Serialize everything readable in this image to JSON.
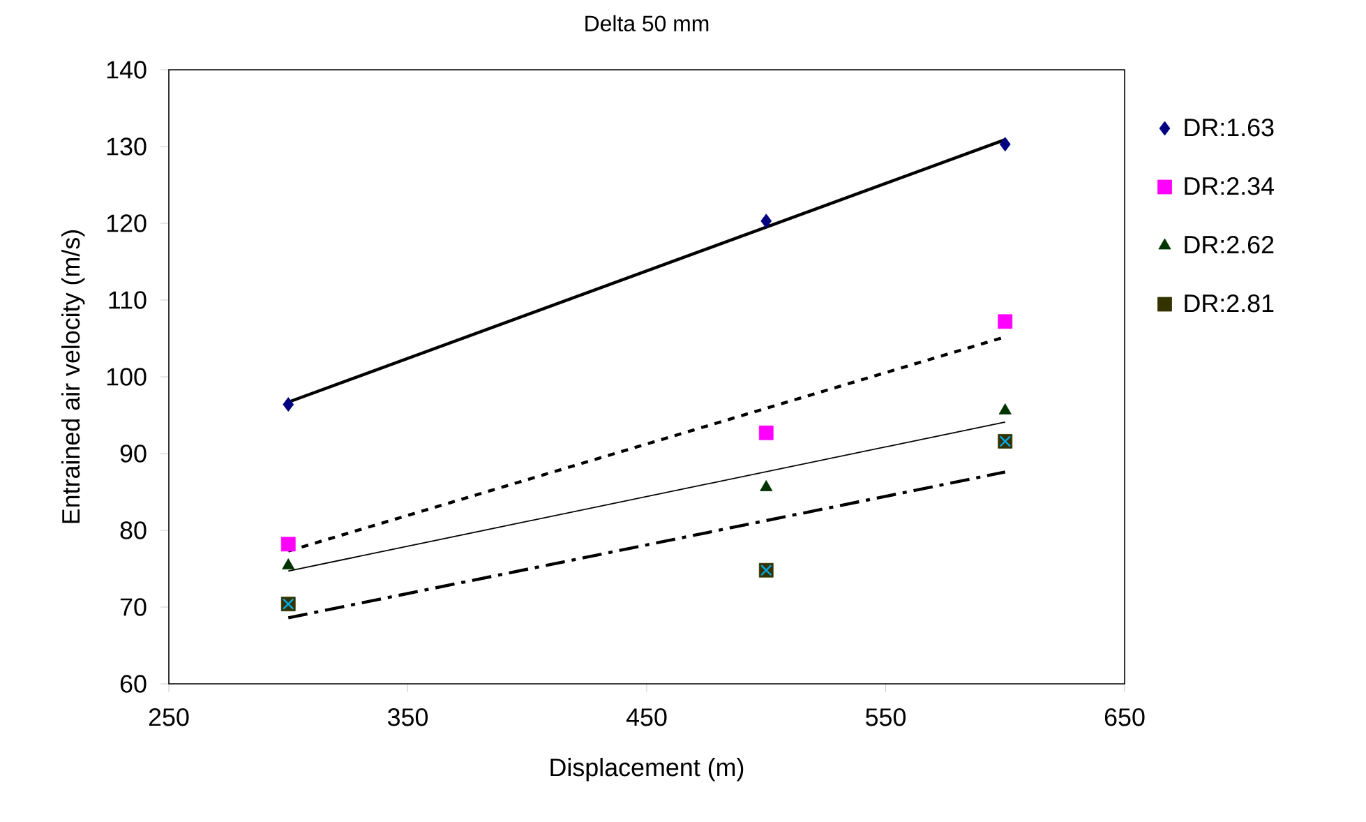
{
  "chart_data": {
    "type": "scatter",
    "title": "Delta 50 mm",
    "xlabel": "Displacement  (m)",
    "ylabel": "Entrained air velocity (m/s)",
    "xlim": [
      250,
      650
    ],
    "ylim": [
      60,
      140
    ],
    "xticks": [
      250,
      350,
      450,
      550,
      650
    ],
    "yticks": [
      60,
      70,
      80,
      90,
      100,
      110,
      120,
      130,
      140
    ],
    "grid": false,
    "legend": "right",
    "series": [
      {
        "name": "DR:1.63",
        "marker": "diamond",
        "color": "#000080",
        "x": [
          300,
          500,
          600
        ],
        "values": [
          96.4,
          120.3,
          130.3
        ]
      },
      {
        "name": "DR:2.34",
        "marker": "square",
        "color": "#ff00ff",
        "x": [
          300,
          500,
          600
        ],
        "values": [
          78.2,
          92.7,
          107.2
        ]
      },
      {
        "name": "DR:2.62",
        "marker": "triangle",
        "color": "#003300",
        "x": [
          300,
          500,
          600
        ],
        "values": [
          75.4,
          85.6,
          95.6
        ]
      },
      {
        "name": "DR:2.81",
        "marker": "square",
        "color": "#333300",
        "x": [
          300,
          500,
          600
        ],
        "values": [
          70.4,
          74.8,
          91.6
        ]
      },
      {
        "type": "line",
        "line_style": "solid",
        "color": "#000000",
        "x": [
          300,
          600
        ],
        "values": [
          96.7,
          130.9
        ]
      },
      {
        "type": "line",
        "line_style": "dotted",
        "color": "#000000",
        "x": [
          300,
          600
        ],
        "values": [
          77.3,
          105.2
        ]
      },
      {
        "type": "line",
        "line_style": "solid",
        "color": "#000000",
        "x": [
          300,
          600
        ],
        "values": [
          74.7,
          94.1
        ]
      },
      {
        "type": "line",
        "line_style": "dashed",
        "color": "#000000",
        "x": [
          300,
          600
        ],
        "values": [
          68.6,
          87.6
        ]
      }
    ]
  }
}
